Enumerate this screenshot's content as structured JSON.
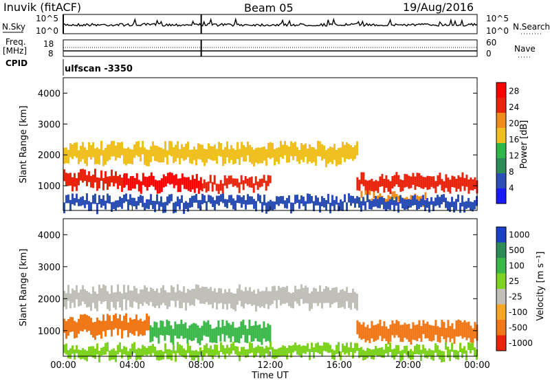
{
  "header": {
    "station": "Inuvik (fitACF)",
    "beam": "Beam 05",
    "date": "19/Aug/2016"
  },
  "nsky_panel": {
    "left_label": "N.Sky",
    "right_label": "N.Search",
    "tick_top": "10^5",
    "tick_bottom": "10^0"
  },
  "freq_panel": {
    "left_label_1": "Freq.",
    "left_label_2": "[MHz]",
    "right_label": "Nave",
    "tick_left_top": "18",
    "tick_left_bottom": "8",
    "tick_right_top": "60",
    "tick_right_bottom": "0"
  },
  "cpid": {
    "label": "CPID",
    "value": "ulfscan -3350"
  },
  "chart_data": [
    {
      "type": "heatmap",
      "name": "power",
      "ylabel": "Slant Range [km]",
      "yticks": [
        "1000",
        "2000",
        "3000",
        "4000"
      ],
      "ylim": [
        200,
        4500
      ],
      "xlim": [
        "00:00",
        "24:00"
      ],
      "colorbar_label": "Power [dB]",
      "colorbar_ticks": [
        "4",
        "8",
        "12",
        "16",
        "20",
        "24",
        "28"
      ],
      "colorbar_range": [
        0,
        30
      ],
      "colors": [
        "#1a1aff",
        "#2c4fb5",
        "#2e8b57",
        "#2fb84a",
        "#f0c020",
        "#f08c1e",
        "#e8240c",
        "#ff0000"
      ],
      "bands": [
        {
          "x": [
            0.0,
            3.5
          ],
          "y": [
            1000,
            1400
          ],
          "level": 26
        },
        {
          "x": [
            3.5,
            8.0
          ],
          "y": [
            900,
            1300
          ],
          "level": 27
        },
        {
          "x": [
            8.0,
            12.0
          ],
          "y": [
            900,
            1200
          ],
          "level": 25
        },
        {
          "x": [
            0.0,
            17.0
          ],
          "y": [
            1800,
            2300
          ],
          "level": 16
        },
        {
          "x": [
            17.0,
            24.0
          ],
          "y": [
            900,
            1300
          ],
          "level": 26
        },
        {
          "x": [
            17.0,
            21.0
          ],
          "y": [
            500,
            700
          ],
          "level": 22
        },
        {
          "x": [
            0.0,
            24.0
          ],
          "y": [
            300,
            600
          ],
          "level": 6
        }
      ]
    },
    {
      "type": "heatmap",
      "name": "velocity",
      "xlabel": "Time UT",
      "ylabel": "Slant Range [km]",
      "yticks": [
        "1000",
        "2000",
        "3000",
        "4000"
      ],
      "ylim": [
        200,
        4500
      ],
      "xticks": [
        "00:00",
        "04:00",
        "08:00",
        "12:00",
        "16:00",
        "20:00",
        "00:00"
      ],
      "colorbar_label": "Velocity [m s⁻¹]",
      "colorbar_ticks": [
        "1000",
        "500",
        "100",
        "25",
        "-25",
        "-100",
        "-500",
        "-1000"
      ],
      "colors": [
        "#1a3fc8",
        "#2e8b57",
        "#3cb84a",
        "#7ed321",
        "#c0c0b8",
        "#f5a623",
        "#f07818",
        "#e8240c"
      ],
      "bands": [
        {
          "x": [
            0.0,
            17.0
          ],
          "y": [
            1800,
            2300
          ],
          "level": "-25"
        },
        {
          "x": [
            5.0,
            12.0
          ],
          "y": [
            700,
            1200
          ],
          "level": "100"
        },
        {
          "x": [
            0.0,
            5.0
          ],
          "y": [
            900,
            1400
          ],
          "level": "-500"
        },
        {
          "x": [
            17.0,
            24.0
          ],
          "y": [
            700,
            1200
          ],
          "level": "-500"
        },
        {
          "x": [
            0.0,
            24.0
          ],
          "y": [
            200,
            500
          ],
          "level": "25"
        }
      ]
    }
  ]
}
